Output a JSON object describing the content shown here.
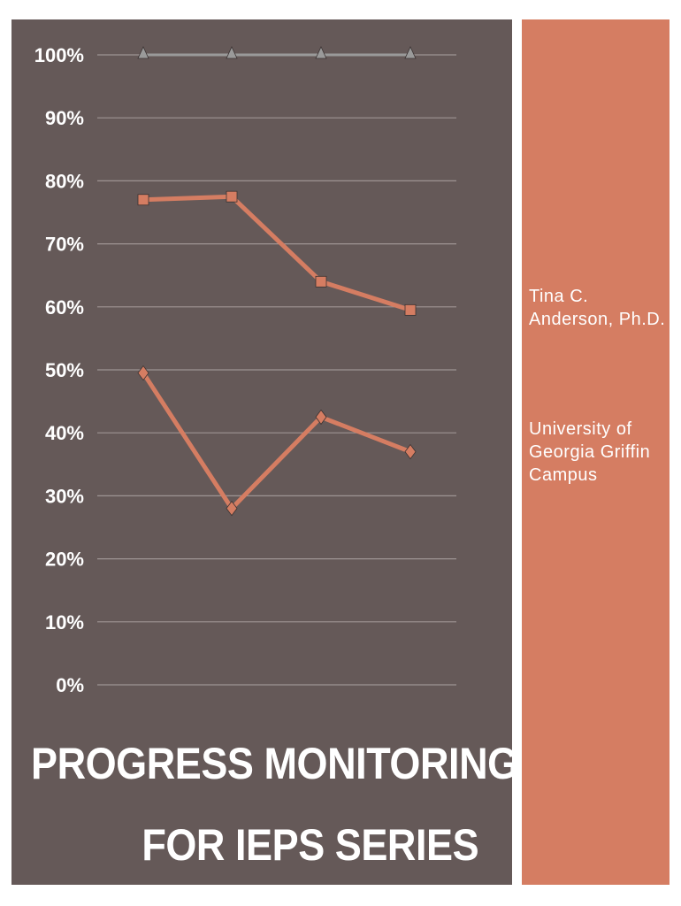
{
  "chart_data": {
    "type": "line",
    "x": [
      1,
      2,
      3,
      4
    ],
    "ylim": [
      0,
      1
    ],
    "yticks": [
      "100%",
      "90%",
      "80%",
      "70%",
      "60%",
      "50%",
      "40%",
      "30%",
      "20%",
      "10%",
      "0%"
    ],
    "ytick_values": [
      1.0,
      0.9,
      0.8,
      0.7,
      0.6,
      0.5,
      0.4,
      0.3,
      0.2,
      0.1,
      0.0
    ],
    "grid": true,
    "series": [
      {
        "marker": "triangle",
        "color": "#9a9a9a",
        "values": [
          1.0,
          1.0,
          1.0,
          1.0
        ]
      },
      {
        "marker": "square",
        "color": "#d57d62",
        "values": [
          0.77,
          0.775,
          0.64,
          0.595
        ]
      },
      {
        "marker": "diamond",
        "color": "#d57d62",
        "values": [
          0.495,
          0.28,
          0.425,
          0.37
        ]
      }
    ]
  },
  "title": {
    "line1": "PROGRESS MONITORING",
    "line2": "FOR IEPS SERIES"
  },
  "author": {
    "name": "Tina C. Anderson, Ph.D.",
    "affiliation": "University of Georgia Griffin Campus"
  },
  "colors": {
    "left_panel": "#655958",
    "right_panel": "#d57d62",
    "grid": "#9e9493"
  }
}
